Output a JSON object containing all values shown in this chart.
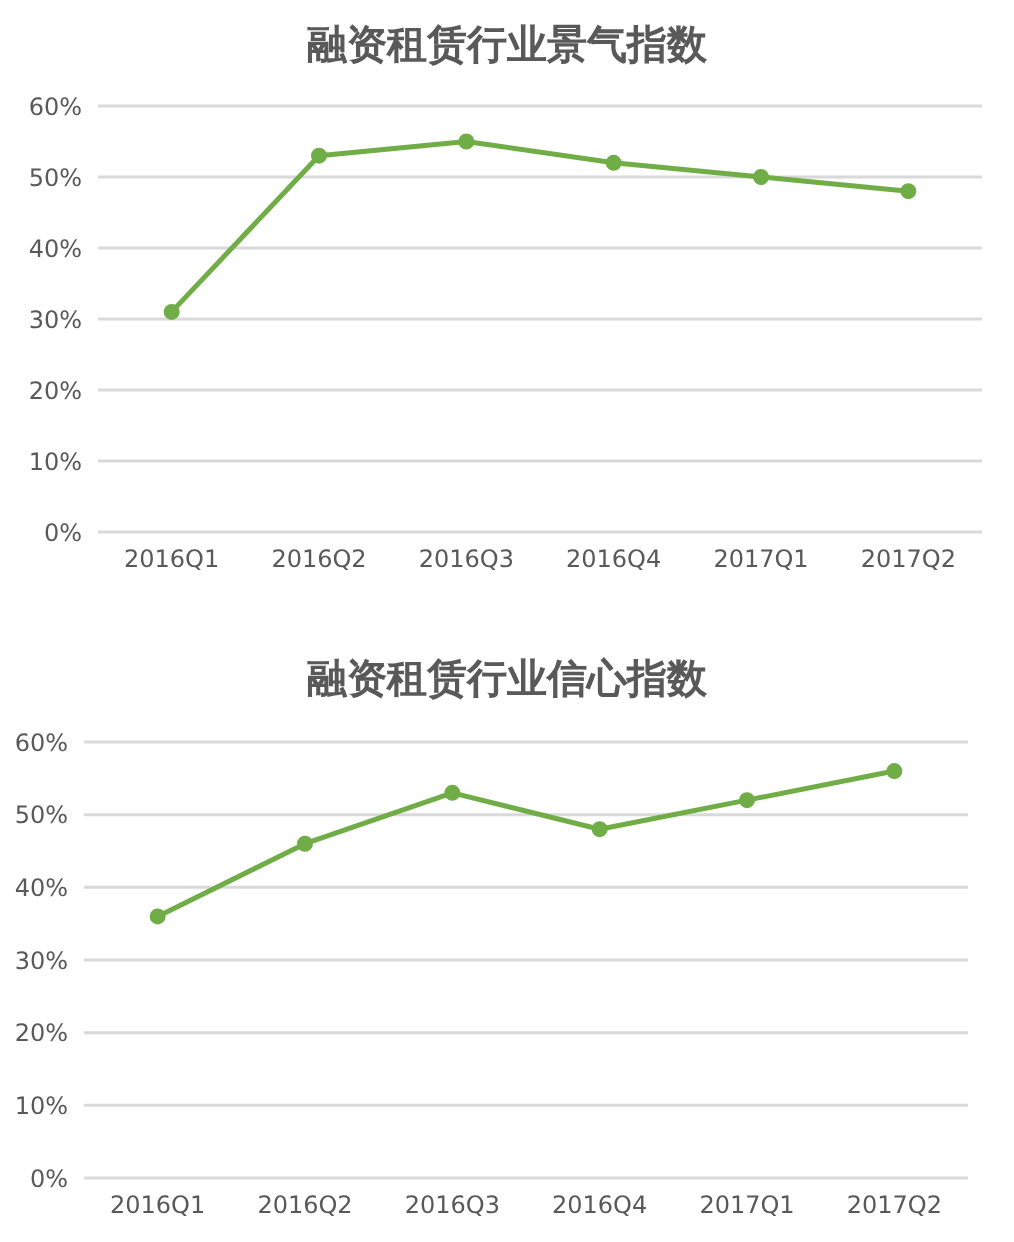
{
  "chart_data": [
    {
      "type": "line",
      "title": "融资租赁行业景气指数",
      "categories": [
        "2016Q1",
        "2016Q2",
        "2016Q3",
        "2016Q4",
        "2017Q1",
        "2017Q2"
      ],
      "values": [
        31,
        53,
        55,
        52,
        50,
        48
      ],
      "color": "#70ad47",
      "ylim": [
        0,
        60
      ],
      "yticks": [
        {
          "value": 0,
          "label": "0%"
        },
        {
          "value": 10,
          "label": "10%"
        },
        {
          "value": 20,
          "label": "20%"
        },
        {
          "value": 30,
          "label": "30%"
        },
        {
          "value": 40,
          "label": "40%"
        },
        {
          "value": 50,
          "label": "50%"
        },
        {
          "value": 60,
          "label": "60%"
        }
      ],
      "grid": "y",
      "marker": "circle",
      "line_style": "solid"
    },
    {
      "type": "line",
      "title": "融资租赁行业信心指数",
      "categories": [
        "2016Q1",
        "2016Q2",
        "2016Q3",
        "2016Q4",
        "2017Q1",
        "2017Q2"
      ],
      "values": [
        36,
        46,
        53,
        48,
        52,
        56
      ],
      "color": "#70ad47",
      "ylim": [
        0,
        60
      ],
      "yticks": [
        {
          "value": 0,
          "label": "0%"
        },
        {
          "value": 10,
          "label": "10%"
        },
        {
          "value": 20,
          "label": "20%"
        },
        {
          "value": 30,
          "label": "30%"
        },
        {
          "value": 40,
          "label": "40%"
        },
        {
          "value": 50,
          "label": "50%"
        },
        {
          "value": 60,
          "label": "60%"
        }
      ],
      "grid": "y",
      "marker": "circle",
      "line_style": "solid"
    }
  ]
}
